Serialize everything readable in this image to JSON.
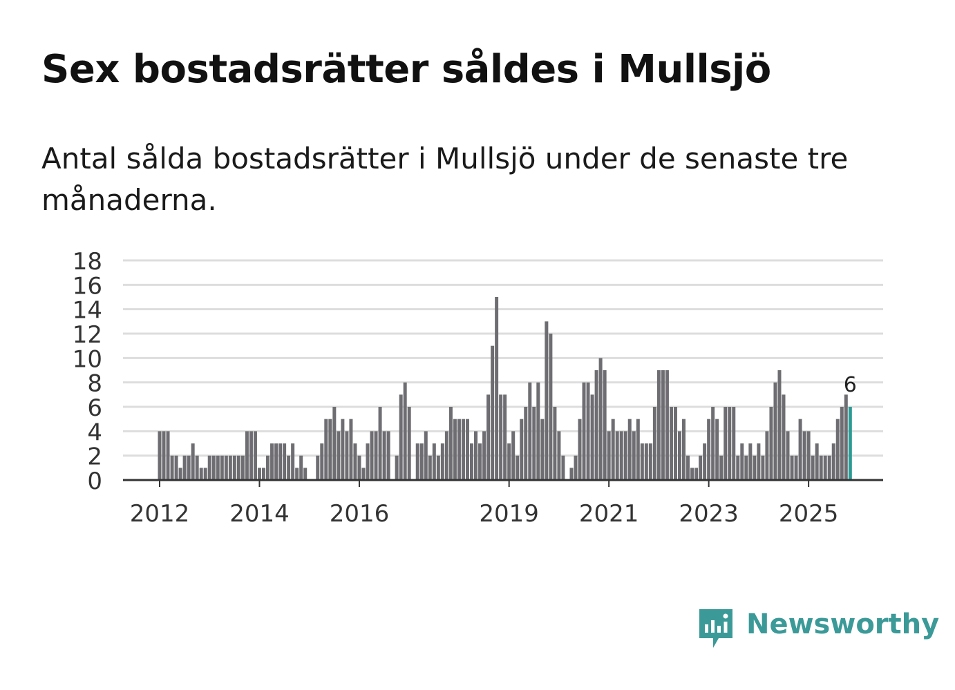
{
  "header": {
    "title": "Sex bostadsrätter såldes i Mullsjö",
    "subtitle": "Antal sålda bostadsrätter i Mullsjö under de senaste tre månaderna."
  },
  "brand": {
    "name": "Newsworthy",
    "color": "#3b9a98"
  },
  "colors": {
    "bar": "#6e6d72",
    "highlight": "#2a9a94",
    "grid": "#dddddd",
    "axis": "#333333"
  },
  "chart_data": {
    "type": "bar",
    "title": "Sex bostadsrätter såldes i Mullsjö",
    "xlabel": "",
    "ylabel": "",
    "ylim": [
      0,
      18
    ],
    "yticks": [
      0,
      2,
      4,
      6,
      8,
      10,
      12,
      14,
      16,
      18
    ],
    "xtick_labels": [
      {
        "label": "2012",
        "index": 0
      },
      {
        "label": "2014",
        "index": 24
      },
      {
        "label": "2016",
        "index": 48
      },
      {
        "label": "2019",
        "index": 84
      },
      {
        "label": "2021",
        "index": 108
      },
      {
        "label": "2023",
        "index": 132
      },
      {
        "label": "2025",
        "index": 156
      }
    ],
    "start": "2012-01",
    "highlight_index": 166,
    "highlight_label": "6",
    "values": [
      4,
      4,
      4,
      2,
      2,
      1,
      2,
      2,
      3,
      2,
      1,
      1,
      2,
      2,
      2,
      2,
      2,
      2,
      2,
      2,
      2,
      4,
      4,
      4,
      1,
      1,
      2,
      3,
      3,
      3,
      3,
      2,
      3,
      1,
      2,
      1,
      0,
      0,
      2,
      3,
      5,
      5,
      6,
      4,
      5,
      4,
      5,
      3,
      2,
      1,
      3,
      4,
      4,
      6,
      4,
      4,
      0,
      2,
      7,
      8,
      6,
      0,
      3,
      3,
      4,
      2,
      3,
      2,
      3,
      4,
      6,
      5,
      5,
      5,
      5,
      3,
      4,
      3,
      4,
      7,
      11,
      15,
      7,
      7,
      3,
      4,
      2,
      5,
      6,
      8,
      6,
      8,
      5,
      13,
      12,
      6,
      4,
      2,
      0,
      1,
      2,
      5,
      8,
      8,
      7,
      9,
      10,
      9,
      4,
      5,
      4,
      4,
      4,
      5,
      4,
      5,
      3,
      3,
      3,
      6,
      9,
      9,
      9,
      6,
      6,
      4,
      5,
      2,
      1,
      1,
      2,
      3,
      5,
      6,
      5,
      2,
      6,
      6,
      6,
      2,
      3,
      2,
      3,
      2,
      3,
      2,
      4,
      6,
      8,
      9,
      7,
      4,
      2,
      2,
      5,
      4,
      4,
      2,
      3,
      2,
      2,
      2,
      3,
      5,
      6,
      7,
      6
    ]
  }
}
